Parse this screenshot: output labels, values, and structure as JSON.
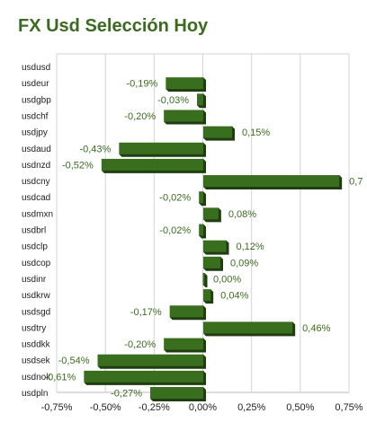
{
  "chart_data": {
    "type": "bar",
    "orientation": "horizontal",
    "title": "FX Usd Selección Hoy",
    "xlabel": "",
    "ylabel": "",
    "categories": [
      "usdusd",
      "usdeur",
      "usdgbp",
      "usdchf",
      "usdjpy",
      "usdaud",
      "usdnzd",
      "usdcny",
      "usdcad",
      "usdmxn",
      "usdbrl",
      "usdclp",
      "usdcop",
      "usdinr",
      "usdkrw",
      "usdsgd",
      "usdtry",
      "usddkk",
      "usdsek",
      "usdnok",
      "usdpln"
    ],
    "values": [
      null,
      -0.19,
      -0.03,
      -0.2,
      0.15,
      -0.43,
      -0.52,
      0.7,
      -0.02,
      0.08,
      -0.02,
      0.12,
      0.09,
      0.0,
      0.04,
      -0.17,
      0.46,
      -0.2,
      -0.54,
      -0.61,
      -0.27
    ],
    "value_labels": [
      "",
      "-0,19%",
      "-0,03%",
      "-0,20%",
      "0,15%",
      "-0,43%",
      "-0,52%",
      "0,7",
      "-0,02%",
      "0,08%",
      "-0,02%",
      "0,12%",
      "0,09%",
      "0,00%",
      "0,04%",
      "-0,17%",
      "0,46%",
      "-0,20%",
      "-0,54%",
      "-0,61%",
      "-0,27%"
    ],
    "xlim": [
      -0.75,
      0.75
    ],
    "x_ticks": [
      -0.75,
      -0.5,
      -0.25,
      0,
      0.25,
      0.5,
      0.75
    ],
    "x_tick_labels": [
      "-0,75%",
      "-0,50%",
      "-0,25%",
      "0,00%",
      "0,25%",
      "0,50%",
      "0,75%"
    ],
    "grid": true,
    "colors": {
      "bar_front": "#3a6e1f",
      "bar_side": "#1f3d10",
      "title": "#3a6b1e",
      "value_label": "#3a6b1e",
      "grid": "#d3d3d3"
    }
  }
}
